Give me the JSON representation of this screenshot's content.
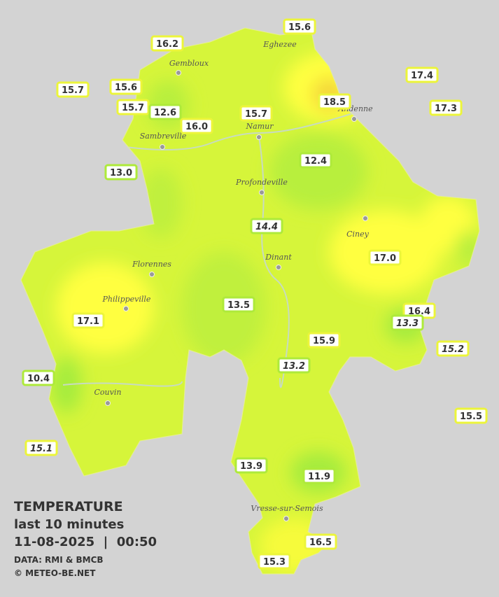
{
  "legend": {
    "title": "TEMPERATURE",
    "subtitle": "last 10 minutes",
    "datetime": "11-08-2025  |  00:50",
    "source": "DATA: RMI & BMCB",
    "credit": "© METEO-BE.NET"
  },
  "towns": [
    "Eghezee",
    "Gembloux",
    "Andenne",
    "Namur",
    "Sambreville",
    "Profondeville",
    "Ciney",
    "Florennes",
    "Dinant",
    "Philippeville",
    "Couvin",
    "Vresse-sur-Semois"
  ],
  "stations": [
    {
      "label": "16.2"
    },
    {
      "label": "15.6"
    },
    {
      "label": "17.4"
    },
    {
      "label": "15.7"
    },
    {
      "label": "15.6"
    },
    {
      "label": "18.5"
    },
    {
      "label": "15.7"
    },
    {
      "label": "12.6"
    },
    {
      "label": "15.7"
    },
    {
      "label": "17.3"
    },
    {
      "label": "16.0"
    },
    {
      "label": "12.4"
    },
    {
      "label": "13.0"
    },
    {
      "label": "14.4",
      "style": "italic"
    },
    {
      "label": "17.0"
    },
    {
      "label": "13.5"
    },
    {
      "label": "16.4"
    },
    {
      "label": "17.1"
    },
    {
      "label": "13.3",
      "style": "italic"
    },
    {
      "label": "15.9"
    },
    {
      "label": "15.2",
      "style": "italic"
    },
    {
      "label": "13.2",
      "style": "italic"
    },
    {
      "label": "10.4"
    },
    {
      "label": "15.5"
    },
    {
      "label": "15.1",
      "style": "italic"
    },
    {
      "label": "13.9"
    },
    {
      "label": "11.9"
    },
    {
      "label": "16.5"
    },
    {
      "label": "15.3"
    }
  ]
}
